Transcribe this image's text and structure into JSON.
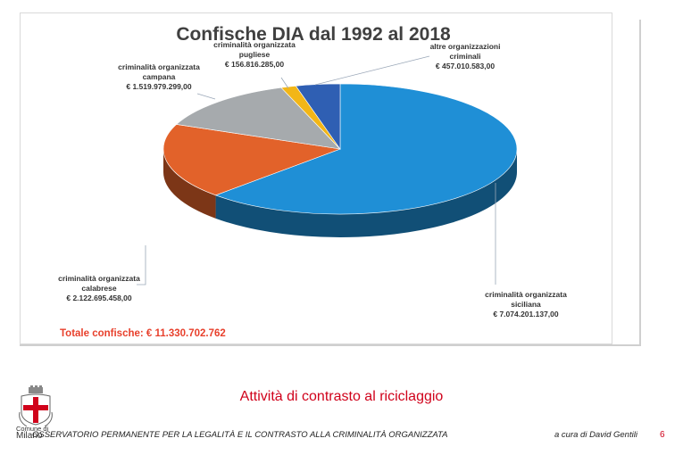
{
  "chart_data": {
    "type": "pie",
    "style": "3d",
    "title": "Confische DIA dal 1992 al 2018",
    "total_label": "Totale confische: € 11.330.702.762",
    "slices": [
      {
        "name": "criminalità organizzata siciliana",
        "line1": "criminalità organizzata",
        "line2": "siciliana",
        "value_label": "€ 7.074.201.137,00",
        "value": 7074201137.0,
        "color": "#1f8fd6"
      },
      {
        "name": "criminalità organizzata calabrese",
        "line1": "criminalità organizzata",
        "line2": "calabrese",
        "value_label": "€ 2.122.695.458,00",
        "value": 2122695458.0,
        "color": "#e2622a"
      },
      {
        "name": "criminalità organizzata campana",
        "line1": "criminalità organizzata",
        "line2": "campana",
        "value_label": "€ 1.519.979.299,00",
        "value": 1519979299.0,
        "color": "#a6aaad"
      },
      {
        "name": "criminalità organizzata pugliese",
        "line1": "criminalità organizzata",
        "line2": "pugliese",
        "value_label": "€ 156.816.285,00",
        "value": 156816285.0,
        "color": "#f2b617"
      },
      {
        "name": "altre organizzazioni criminali",
        "line1": "altre organizzazioni",
        "line2": "criminali",
        "value_label": "€ 457.010.583,00",
        "value": 457010583.0,
        "color": "#2f5fb3"
      }
    ]
  },
  "slide": {
    "subtitle": "Attività di contrasto al riciclaggio",
    "footer_left": "OSSERVATORIO PERMANENTE PER LA LEGALITÀ E IL CONTRASTO ALLA CRIMINALITÀ ORGANIZZATA",
    "footer_right": "a cura di David Gentili",
    "page_number": "6",
    "logo_line1": "Comune di",
    "logo_line2": "Milano"
  }
}
